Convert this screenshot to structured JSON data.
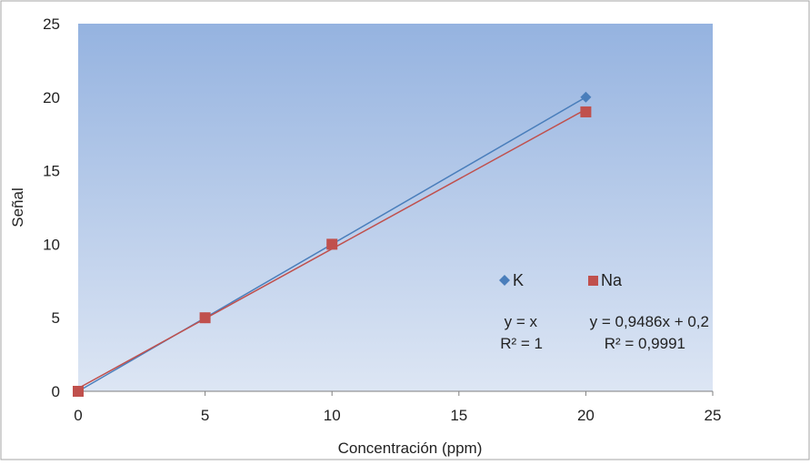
{
  "chart_data": {
    "type": "scatter",
    "title": "",
    "xlabel": "Concentración (ppm)",
    "ylabel": "Señal",
    "xlim": [
      0,
      25
    ],
    "ylim": [
      0,
      25
    ],
    "xticks": [
      0,
      5,
      10,
      15,
      20,
      25
    ],
    "yticks": [
      0,
      5,
      10,
      15,
      20,
      25
    ],
    "x_tick_labels": [
      "0",
      "5",
      "10",
      "15",
      "20",
      "25"
    ],
    "y_tick_labels": [
      "0",
      "5",
      "10",
      "15",
      "20",
      "25"
    ],
    "legend_position": "center-right",
    "series": [
      {
        "name": "K",
        "marker": "diamond",
        "color": "#4a7ebb",
        "x": [
          0,
          5,
          10,
          20
        ],
        "y": [
          0,
          5,
          10,
          20
        ],
        "trendline": {
          "slope": 1,
          "intercept": 0,
          "equation": "y = x",
          "r2": "R² = 1"
        }
      },
      {
        "name": "Na",
        "marker": "square",
        "color": "#c0504d",
        "x": [
          0,
          5,
          10,
          20
        ],
        "y": [
          0,
          5,
          10,
          19
        ],
        "trendline": {
          "slope": 0.9486,
          "intercept": 0.2,
          "equation": "y = 0,9486x + 0,2",
          "r2": "R² = 0,9991"
        }
      }
    ]
  },
  "colors": {
    "plot_top": "#95b3e0",
    "plot_bottom": "#dde6f4",
    "frame": "#a6a6a6",
    "axis": "#7f7f7f"
  }
}
